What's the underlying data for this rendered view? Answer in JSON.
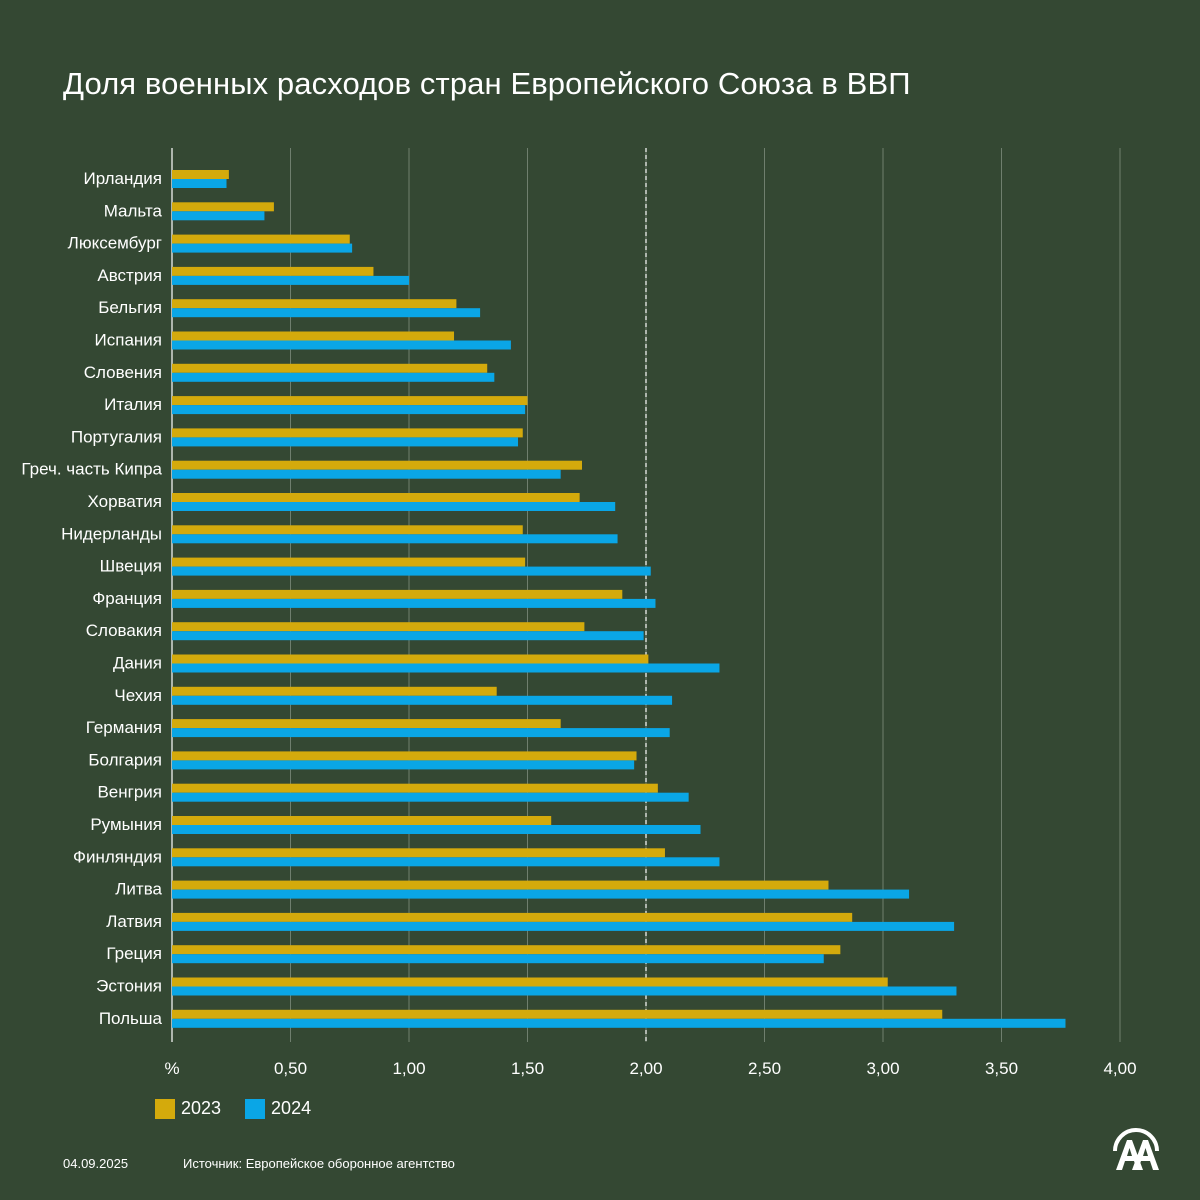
{
  "title": "Доля военных расходов стран Европейского Союза в ВВП",
  "footer": {
    "date": "04.09.2025",
    "source": "Источник: Европейское оборонное агентство",
    "logo_text": "AA"
  },
  "colors": {
    "background": "#344833",
    "series_2023": "#d4aa0c",
    "series_2024": "#0aa6e6"
  },
  "chart_data": {
    "type": "bar",
    "orientation": "horizontal",
    "title": "Доля военных расходов стран Европейского Союза в ВВП",
    "xlabel": "%",
    "ylabel": "",
    "xlim": [
      0,
      4
    ],
    "x_ticks": [
      "%",
      "0,50",
      "1,00",
      "1,50",
      "2,00",
      "2,50",
      "3,00",
      "3,50",
      "4,00"
    ],
    "grid": true,
    "reference_line": 2.0,
    "legend": "bottom-left",
    "categories": [
      "Ирландия",
      "Мальта",
      "Люксембург",
      "Австрия",
      "Бельгия",
      "Испания",
      "Словения",
      "Италия",
      "Португалия",
      "Греч. часть Кипра",
      "Хорватия",
      "Нидерланды",
      "Швеция",
      "Франция",
      "Словакия",
      "Дания",
      "Чехия",
      "Германия",
      "Болгария",
      "Венгрия",
      "Румыния",
      "Финляндия",
      "Литва",
      "Латвия",
      "Греция",
      "Эстония",
      "Польша"
    ],
    "series": [
      {
        "name": "2023",
        "color": "#d4aa0c",
        "values": [
          0.24,
          0.43,
          0.75,
          0.85,
          1.2,
          1.19,
          1.33,
          1.5,
          1.48,
          1.73,
          1.72,
          1.48,
          1.49,
          1.9,
          1.74,
          2.01,
          1.37,
          1.64,
          1.96,
          2.05,
          1.6,
          2.08,
          2.77,
          2.87,
          2.82,
          3.02,
          3.25
        ]
      },
      {
        "name": "2024",
        "color": "#0aa6e6",
        "values": [
          0.23,
          0.39,
          0.76,
          1.0,
          1.3,
          1.43,
          1.36,
          1.49,
          1.46,
          1.64,
          1.87,
          1.88,
          2.02,
          2.04,
          1.99,
          2.31,
          2.11,
          2.1,
          1.95,
          2.18,
          2.23,
          2.31,
          3.11,
          3.3,
          2.75,
          3.31,
          3.77
        ]
      }
    ]
  }
}
